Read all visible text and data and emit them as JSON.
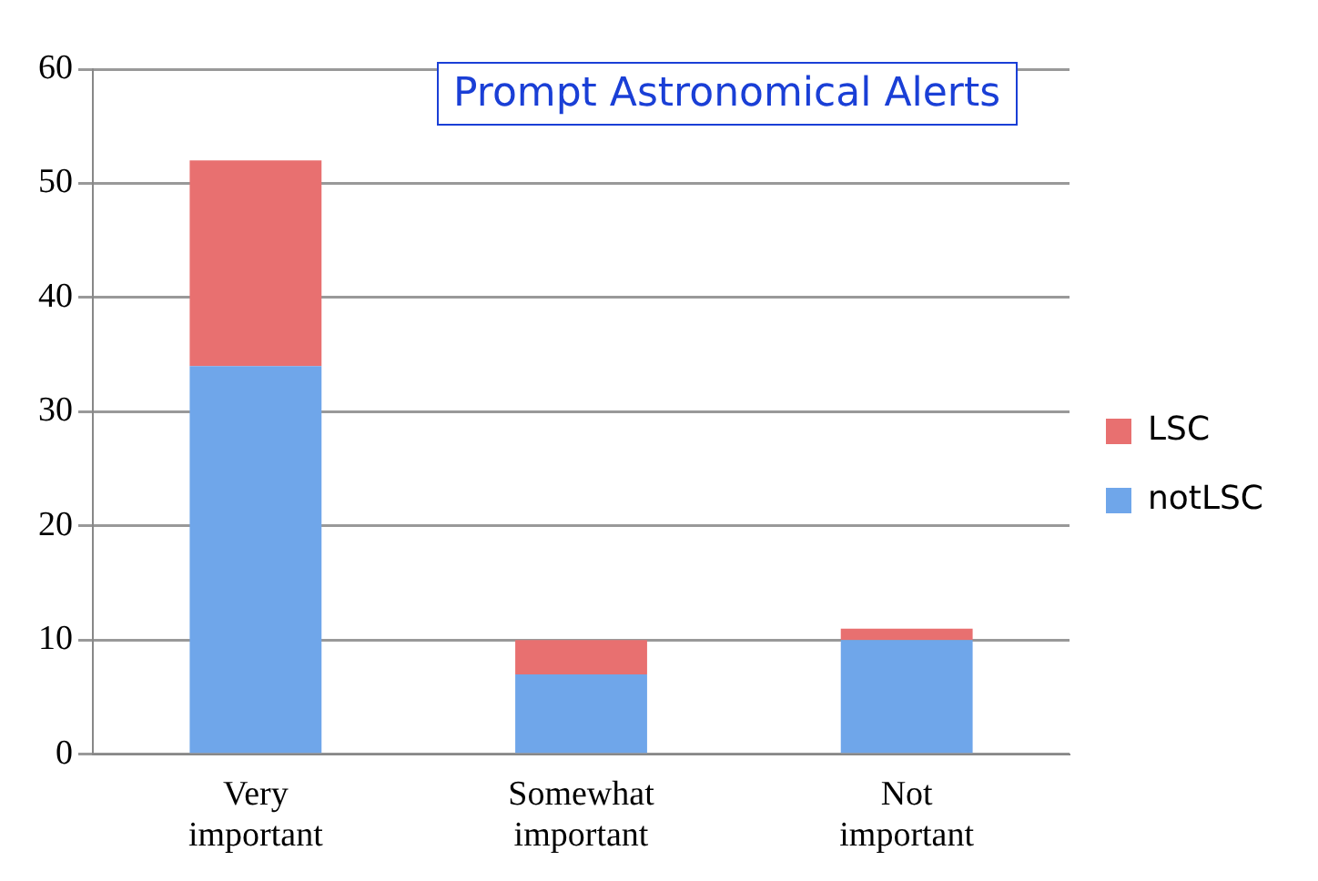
{
  "chart_data": {
    "type": "bar",
    "title": "Prompt Astronomical Alerts",
    "categories": [
      "Very important",
      "Somewhat important",
      "Not important"
    ],
    "stacked": true,
    "series": [
      {
        "name": "notLSC",
        "color": "#6fa6ea",
        "values": [
          34,
          7,
          10
        ]
      },
      {
        "name": "LSC",
        "color": "#e87070",
        "values": [
          18,
          3,
          1
        ]
      }
    ],
    "ylim": [
      0,
      60
    ],
    "yticks": [
      0,
      10,
      20,
      30,
      40,
      50,
      60
    ],
    "grid": "y",
    "legend": "right"
  }
}
